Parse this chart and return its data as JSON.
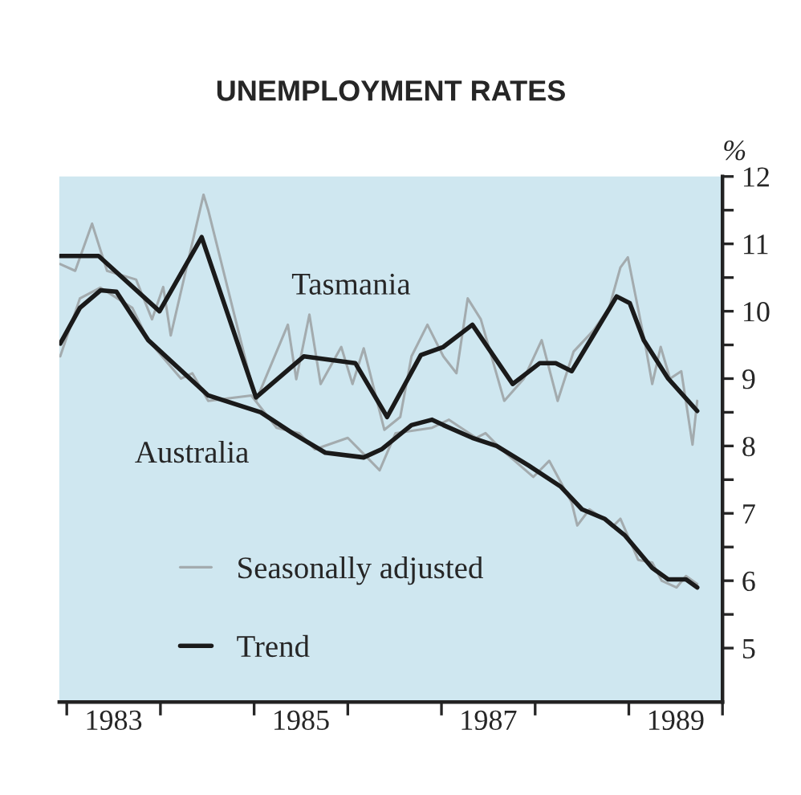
{
  "chart_data": {
    "type": "line",
    "title": "UNEMPLOYMENT RATES",
    "ylabel": "%",
    "xlim": [
      1982.92,
      1990.0
    ],
    "xticks": [
      {
        "value": 1983.0,
        "label": null
      },
      {
        "value": 1983.5,
        "label": "1983"
      },
      {
        "value": 1984.0,
        "label": null
      },
      {
        "value": 1985.0,
        "label": null
      },
      {
        "value": 1985.5,
        "label": "1985"
      },
      {
        "value": 1986.0,
        "label": null
      },
      {
        "value": 1987.0,
        "label": null
      },
      {
        "value": 1987.5,
        "label": "1987"
      },
      {
        "value": 1988.0,
        "label": null
      },
      {
        "value": 1989.0,
        "label": null
      },
      {
        "value": 1989.5,
        "label": "1989"
      },
      {
        "value": 1990.0,
        "label": null
      }
    ],
    "ylim": [
      4.2,
      12.0
    ],
    "yticks": [
      5,
      {
        "value": 5.5,
        "label": null
      },
      6,
      {
        "value": 6.5,
        "label": null
      },
      7,
      {
        "value": 7.5,
        "label": null
      },
      8,
      {
        "value": 8.5,
        "label": null
      },
      9,
      {
        "value": 9.5,
        "label": null
      },
      10,
      {
        "value": 10.5,
        "label": null
      },
      11,
      {
        "value": 11.5,
        "label": null
      },
      12
    ],
    "grid": false,
    "legend": "bottom left",
    "line_style": "solid",
    "marker": "none",
    "series": [
      {
        "name": "Seasonally adjusted",
        "color": "#a3abae",
        "x": [
          1982.93,
          1983.09,
          1983.27,
          1983.43,
          1983.74,
          1983.91,
          1984.03,
          1984.11,
          1984.46,
          1984.51,
          1984.93,
          1985.02,
          1985.36,
          1985.45,
          1985.59,
          1985.71,
          1985.93,
          1986.05,
          1986.17,
          1986.39,
          1986.56,
          1986.68,
          1986.85,
          1987.02,
          1987.16,
          1987.28,
          1987.42,
          1987.67,
          1987.88,
          1988.07,
          1988.24,
          1988.41,
          1988.62,
          1988.79,
          1988.91,
          1988.99,
          1989.18,
          1989.25,
          1989.34,
          1989.44,
          1989.56,
          1989.68,
          1989.73
        ],
        "values": [
          10.7,
          10.6,
          11.3,
          10.6,
          10.47,
          9.88,
          10.36,
          9.64,
          11.73,
          11.5,
          9.16,
          8.67,
          9.8,
          8.99,
          9.95,
          8.92,
          9.47,
          8.92,
          9.45,
          8.24,
          8.43,
          9.33,
          9.8,
          9.33,
          9.08,
          10.19,
          9.88,
          8.67,
          9.0,
          9.57,
          8.67,
          9.4,
          9.71,
          10.05,
          10.65,
          10.8,
          9.47,
          8.92,
          9.47,
          9.0,
          9.11,
          8.02,
          8.67
        ]
      },
      {
        "color": "#a3abae",
        "x": [
          1982.93,
          1983.14,
          1983.36,
          1983.7,
          1983.87,
          1984.22,
          1984.34,
          1984.51,
          1984.97,
          1985.24,
          1985.48,
          1985.65,
          1986.0,
          1986.17,
          1986.34,
          1986.51,
          1986.9,
          1987.08,
          1987.37,
          1987.47,
          1987.64,
          1987.98,
          1988.15,
          1988.39,
          1988.45,
          1988.58,
          1988.84,
          1988.91,
          1989.1,
          1989.25,
          1989.35,
          1989.51,
          1989.61,
          1989.73
        ],
        "values": [
          9.33,
          10.19,
          10.35,
          10.05,
          9.57,
          9.0,
          9.08,
          8.67,
          8.75,
          8.27,
          8.19,
          7.95,
          8.12,
          7.88,
          7.64,
          8.19,
          8.27,
          8.39,
          8.12,
          8.19,
          7.95,
          7.54,
          7.78,
          7.16,
          6.82,
          7.06,
          6.82,
          6.92,
          6.31,
          6.27,
          6.0,
          5.9,
          6.07,
          5.95
        ]
      },
      {
        "name": "Trend",
        "color": "#1a1a1a",
        "x": [
          1982.93,
          1983.34,
          1983.99,
          1984.44,
          1985.02,
          1985.53,
          1986.08,
          1986.42,
          1986.78,
          1987.02,
          1987.33,
          1987.76,
          1988.05,
          1988.22,
          1988.39,
          1988.62,
          1988.87,
          1989.01,
          1989.16,
          1989.42,
          1989.73
        ],
        "values": [
          10.82,
          10.82,
          10.0,
          11.1,
          8.72,
          9.33,
          9.23,
          8.43,
          9.35,
          9.47,
          9.8,
          8.92,
          9.23,
          9.23,
          9.11,
          9.64,
          10.22,
          10.12,
          9.57,
          9.0,
          8.52
        ]
      },
      {
        "color": "#1a1a1a",
        "x": [
          1982.93,
          1983.14,
          1983.36,
          1983.53,
          1983.87,
          1984.51,
          1985.07,
          1985.41,
          1985.76,
          1986.17,
          1986.36,
          1986.68,
          1986.9,
          1987.02,
          1987.33,
          1987.59,
          1987.93,
          1988.27,
          1988.5,
          1988.74,
          1988.96,
          1989.25,
          1989.42,
          1989.61,
          1989.73
        ],
        "values": [
          9.52,
          10.05,
          10.31,
          10.29,
          9.57,
          8.75,
          8.5,
          8.19,
          7.9,
          7.83,
          7.95,
          8.31,
          8.39,
          8.31,
          8.12,
          8.0,
          7.71,
          7.4,
          7.06,
          6.92,
          6.67,
          6.19,
          6.02,
          6.02,
          5.9
        ]
      }
    ],
    "annotations": [
      "Tasmania",
      "Australia"
    ]
  }
}
